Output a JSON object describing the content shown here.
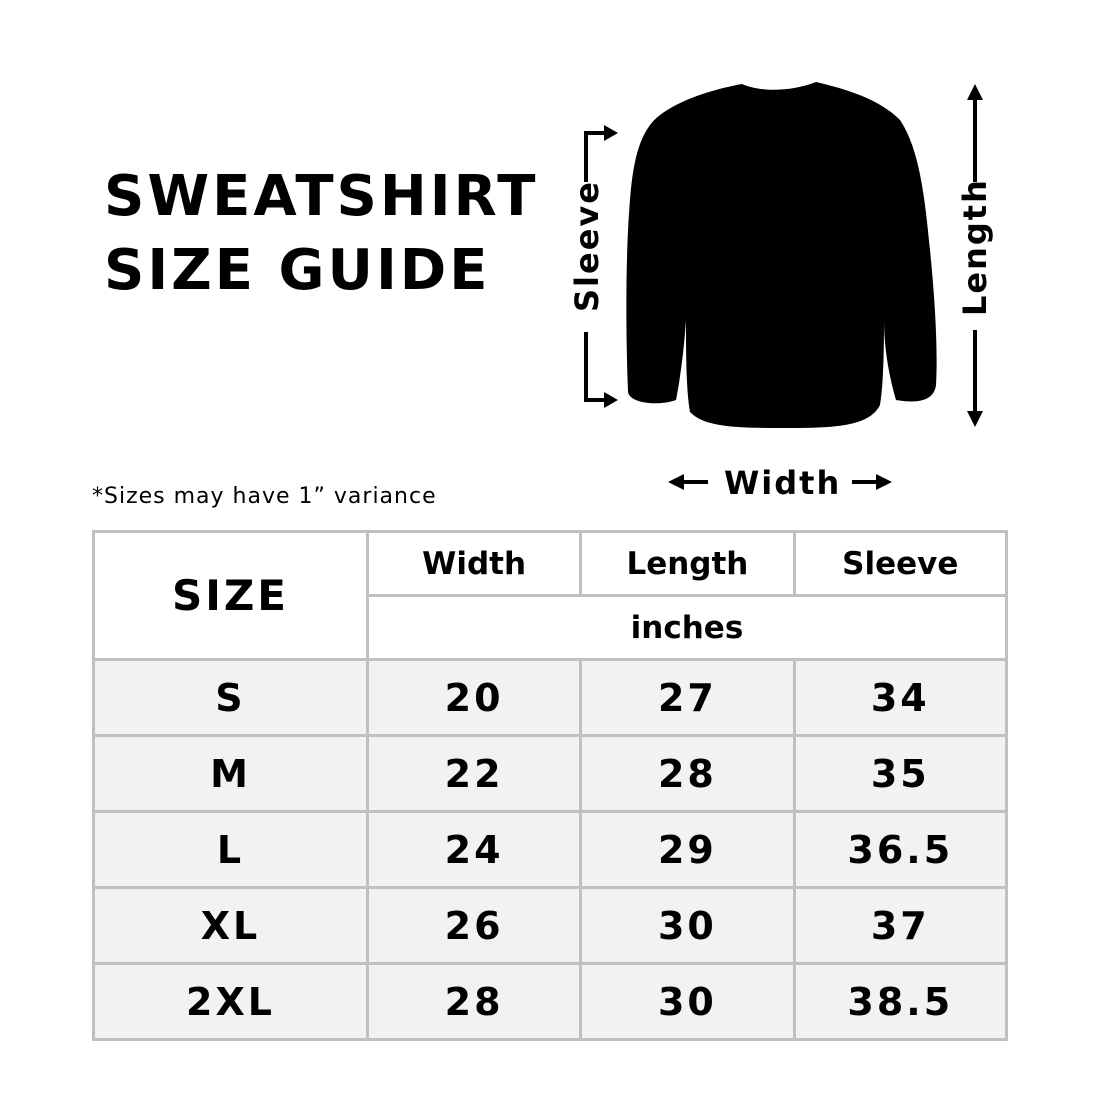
{
  "title_line1": "SWEATSHIRT",
  "title_line2": "SIZE GUIDE",
  "note": "*Sizes may have 1” variance",
  "diagram": {
    "sleeve": "Sleeve",
    "length": "Length",
    "width": "Width",
    "garment_color": "#000000"
  },
  "table": {
    "size_header": "SIZE",
    "columns": [
      "Width",
      "Length",
      "Sleeve"
    ],
    "unit": "inches",
    "rows": [
      {
        "size": "S",
        "width": "20",
        "length": "27",
        "sleeve": "34"
      },
      {
        "size": "M",
        "width": "22",
        "length": "28",
        "sleeve": "35"
      },
      {
        "size": "L",
        "width": "24",
        "length": "29",
        "sleeve": "36.5"
      },
      {
        "size": "XL",
        "width": "26",
        "length": "30",
        "sleeve": "37"
      },
      {
        "size": "2XL",
        "width": "28",
        "length": "30",
        "sleeve": "38.5"
      }
    ]
  }
}
